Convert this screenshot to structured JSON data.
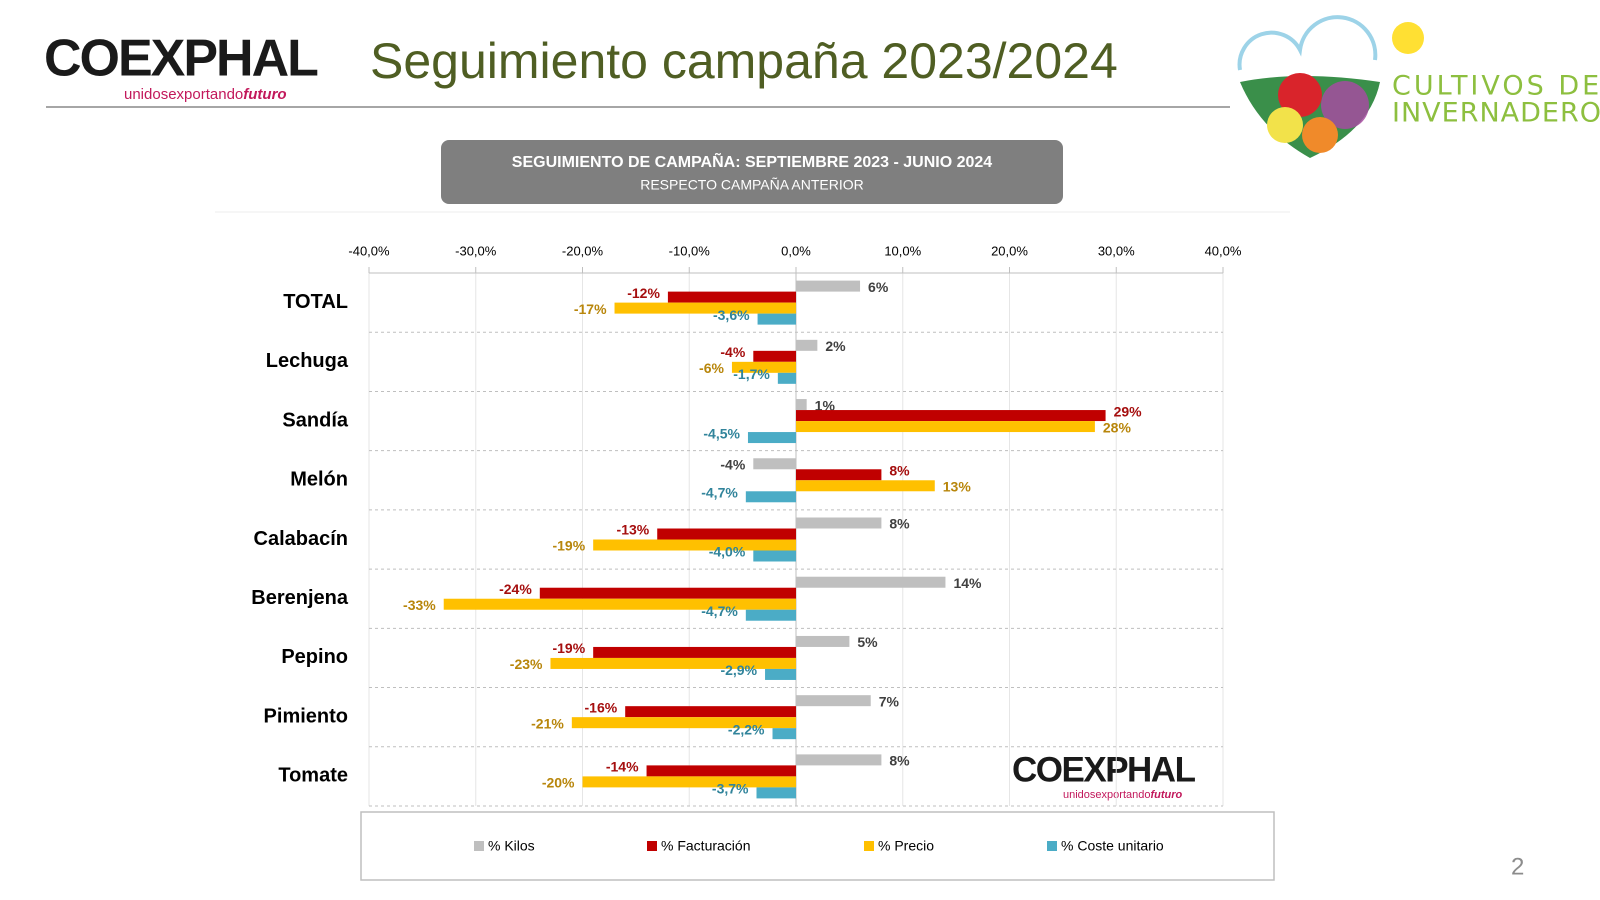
{
  "header": {
    "logo": {
      "name": "COEXPHAL",
      "tagline": [
        "unidos",
        "exportando",
        "futuro"
      ]
    },
    "title": "Seguimiento campaña 2023/2024",
    "partner": [
      "CULTIVOS DE",
      "INVERNADERO"
    ]
  },
  "page_number": "2",
  "chart_data": {
    "type": "hbar",
    "title": "SEGUIMIENTO DE CAMPAÑA: SEPTIEMBRE 2023 - JUNIO 2024",
    "subtitle": "RESPECTO CAMPAÑA ANTERIOR",
    "categories": [
      "TOTAL",
      "Lechuga",
      "Sandía",
      "Melón",
      "Calabacín",
      "Berenjena",
      "Pepino",
      "Pimiento",
      "Tomate"
    ],
    "series": [
      {
        "name": "% Kilos",
        "color": "#bfbfbf",
        "label_color": "#404040",
        "values": [
          6,
          2,
          1,
          -4,
          8,
          14,
          5,
          7,
          8
        ],
        "value_labels": [
          "6%",
          "2%",
          "1%",
          "-4%",
          "8%",
          "14%",
          "5%",
          "7%",
          "8%"
        ]
      },
      {
        "name": "% Facturación",
        "color": "#c00000",
        "label_color": "#a50e0e",
        "values": [
          -12,
          -4,
          29,
          8,
          -13,
          -24,
          -19,
          -16,
          -14
        ],
        "value_labels": [
          "-12%",
          "-4%",
          "29%",
          "8%",
          "-13%",
          "-24%",
          "-19%",
          "-16%",
          "-14%"
        ]
      },
      {
        "name": "% Precio",
        "color": "#ffc000",
        "label_color": "#b8860b",
        "values": [
          -17,
          -6,
          28,
          13,
          -19,
          -33,
          -23,
          -21,
          -20
        ],
        "value_labels": [
          "-17%",
          "-6%",
          "28%",
          "13%",
          "-19%",
          "-33%",
          "-23%",
          "-21%",
          "-20%"
        ]
      },
      {
        "name": "% Coste unitario",
        "color": "#4bacc6",
        "label_color": "#31849b",
        "values": [
          -3.6,
          -1.7,
          -4.5,
          -4.7,
          -4.0,
          -4.7,
          -2.9,
          -2.2,
          -3.7
        ],
        "value_labels": [
          "-3,6%",
          "-1,7%",
          "-4,5%",
          "-4,7%",
          "-4,0%",
          "-4,7%",
          "-2,9%",
          "-2,2%",
          "-3,7%"
        ]
      }
    ],
    "xlim": [
      -40,
      40
    ],
    "xticks": [
      {
        "value": -40,
        "label": "-40,0%"
      },
      {
        "value": -30,
        "label": "-30,0%"
      },
      {
        "value": -20,
        "label": "-20,0%"
      },
      {
        "value": -10,
        "label": "-10,0%"
      },
      {
        "value": 0,
        "label": "0,0%"
      },
      {
        "value": 10,
        "label": "10,0%"
      },
      {
        "value": 20,
        "label": "20,0%"
      },
      {
        "value": 30,
        "label": "30,0%"
      },
      {
        "value": 40,
        "label": "40,0%"
      }
    ],
    "grid": true,
    "legend": "bottom"
  }
}
